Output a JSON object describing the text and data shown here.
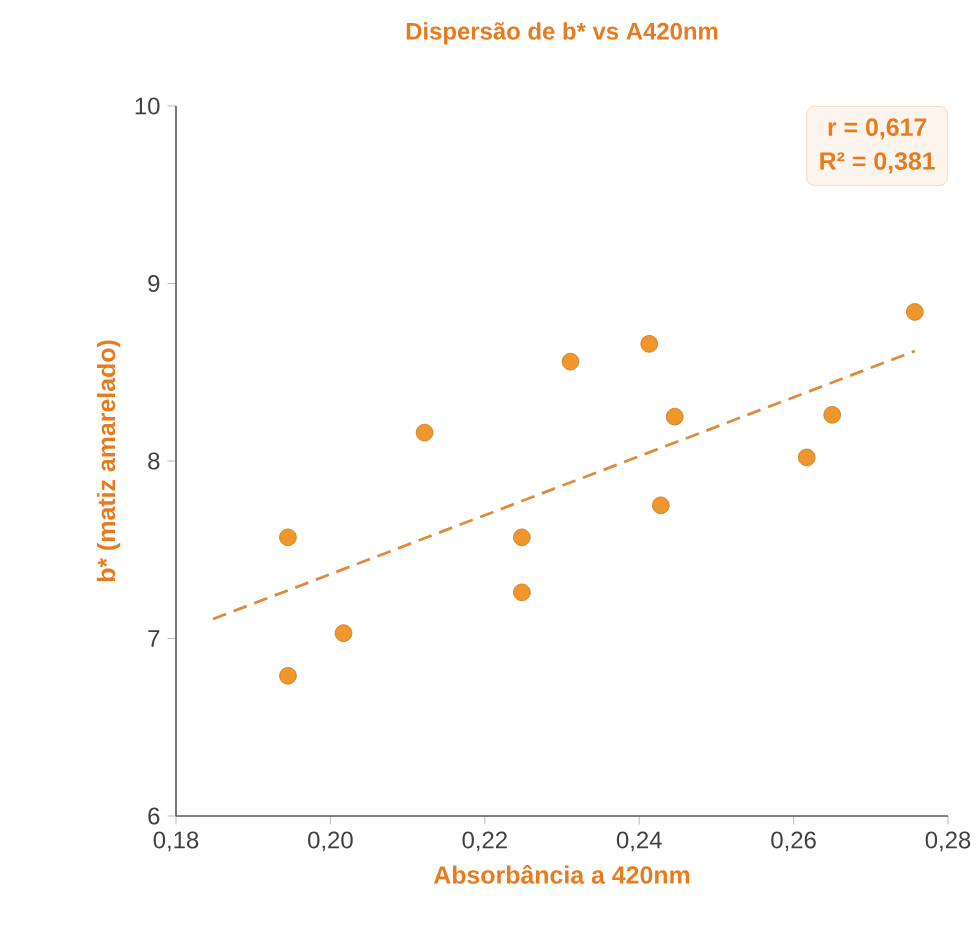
{
  "chart_data": {
    "type": "scatter",
    "title": "Dispersão de b* vs A420nm",
    "xlabel": "Absorbância a 420nm",
    "ylabel": "b* (matiz amarelado)",
    "annotations": [
      "r = 0,617",
      "R² = 0,381"
    ],
    "xlim": [
      0.18,
      0.28
    ],
    "ylim": [
      6,
      10
    ],
    "xticks": [
      {
        "value": 0.18,
        "label": "0,18"
      },
      {
        "value": 0.2,
        "label": "0,20"
      },
      {
        "value": 0.22,
        "label": "0,22"
      },
      {
        "value": 0.24,
        "label": "0,24"
      },
      {
        "value": 0.26,
        "label": "0,26"
      },
      {
        "value": 0.28,
        "label": "0,28"
      }
    ],
    "yticks": [
      6,
      7,
      8,
      9,
      10
    ],
    "marker": "circle",
    "series": [
      {
        "color": "#f0962a",
        "x": [
          0.1945,
          0.1945,
          0.2017,
          0.2122,
          0.2248,
          0.2248,
          0.2311,
          0.2413,
          0.2446,
          0.2428,
          0.2617,
          0.265,
          0.2757
        ],
        "values": [
          7.57,
          6.79,
          7.03,
          8.16,
          7.57,
          7.26,
          8.56,
          8.66,
          8.25,
          7.75,
          8.02,
          8.26,
          8.84
        ]
      },
      {
        "type": "line",
        "color": "#e08a3c",
        "line_style": "dashed",
        "marker": "none",
        "x": [
          0.1848,
          0.2757
        ],
        "values": [
          7.11,
          8.62
        ]
      }
    ]
  }
}
